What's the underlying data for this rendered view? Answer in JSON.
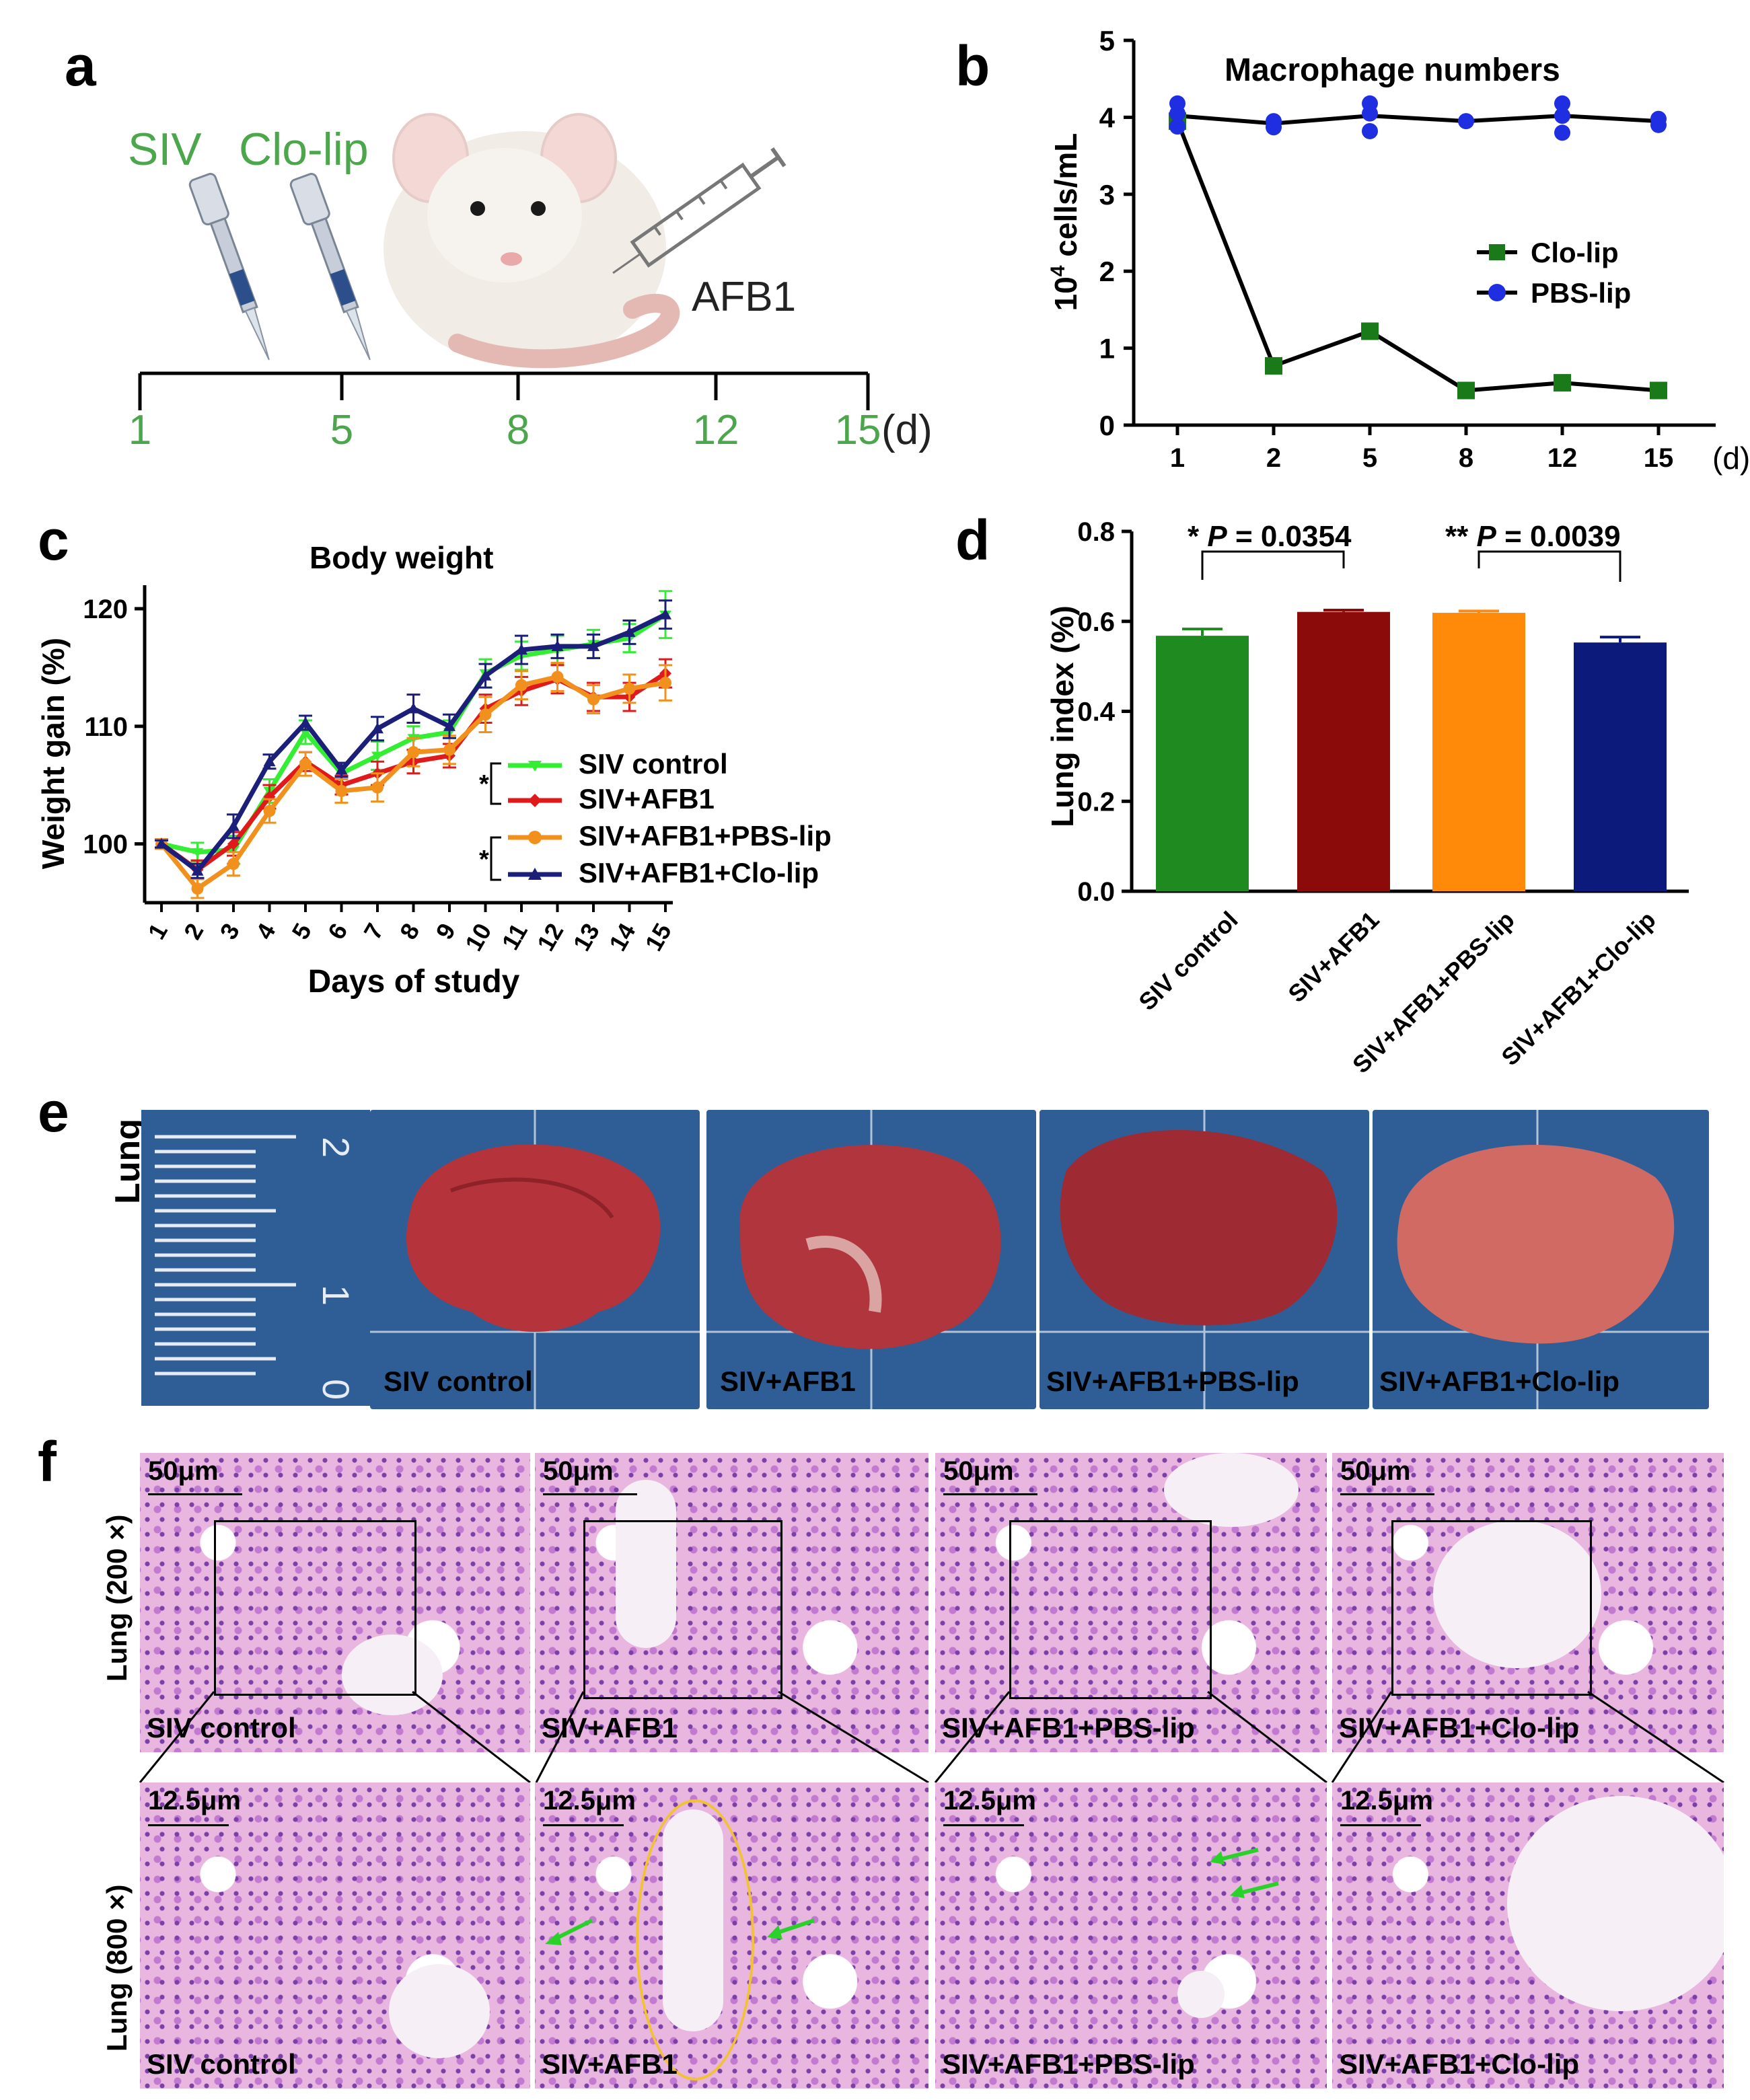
{
  "panels": {
    "a": {
      "label": "a",
      "injections": [
        "SIV",
        "Clo-lip"
      ],
      "drug": "AFB1",
      "timeline_ticks": [
        "1",
        "5",
        "8",
        "12",
        "15"
      ],
      "unit": "(d)"
    },
    "b": {
      "label": "b"
    },
    "c": {
      "label": "c"
    },
    "d": {
      "label": "d"
    },
    "e": {
      "label": "e",
      "row_label": "Lung",
      "ruler_marks": [
        "2",
        "1",
        "0"
      ],
      "samples": [
        "SIV control",
        "SIV+AFB1",
        "SIV+AFB1+PBS-lip",
        "SIV+AFB1+Clo-lip"
      ]
    },
    "f": {
      "label": "f",
      "row_labels": [
        "Lung (200 ×)",
        "Lung (800 ×)"
      ],
      "scalebars": [
        "50μm",
        "12.5μm"
      ],
      "samples": [
        "SIV control",
        "SIV+AFB1",
        "SIV+AFB1+PBS-lip",
        "SIV+AFB1+Clo-lip"
      ]
    }
  },
  "colors": {
    "green_text": "#4ca64c",
    "clo_lip": "#1a7a1a",
    "pbs_lip": "#1f2ee0",
    "siv_control": "#33ee33",
    "siv_afb1": "#e01a1a",
    "afb1_pbs": "#f2901e",
    "afb1_clo": "#1c1f7a",
    "bar_green": "#1f8a1f",
    "bar_maroon": "#8b0a0a",
    "bar_orange": "#ff8a0a",
    "bar_navy": "#0c1a7c"
  },
  "chart_data": [
    {
      "id": "b",
      "type": "line",
      "title": "Macrophage numbers",
      "xlabel": "",
      "ylabel": "10⁴ cells/mL",
      "ylabel_base": "10",
      "ylabel_exp": "4",
      "ylabel_rest": " cells/mL",
      "categories": [
        "1",
        "2",
        "5",
        "8",
        "12",
        "15"
      ],
      "x_unit": "(d)",
      "ylim": [
        0,
        5
      ],
      "yticks": [
        "0",
        "1",
        "2",
        "3",
        "4",
        "5"
      ],
      "series": [
        {
          "name": "Clo-lip",
          "values": [
            3.95,
            0.77,
            1.22,
            0.45,
            0.55,
            0.45
          ]
        },
        {
          "name": "PBS-lip",
          "values": [
            4.02,
            3.92,
            4.02,
            3.95,
            4.02,
            3.95
          ]
        }
      ],
      "pbs_points": [
        [
          1,
          4.18
        ],
        [
          1,
          4.05
        ],
        [
          1,
          3.88
        ],
        [
          2,
          3.95
        ],
        [
          2,
          3.87
        ],
        [
          5,
          4.18
        ],
        [
          5,
          4.05
        ],
        [
          5,
          3.82
        ],
        [
          8,
          3.95
        ],
        [
          12,
          4.18
        ],
        [
          12,
          4.02
        ],
        [
          12,
          3.8
        ],
        [
          15,
          3.98
        ],
        [
          15,
          3.9
        ]
      ]
    },
    {
      "id": "c",
      "type": "line",
      "title": "Body weight",
      "xlabel": "Days of study",
      "ylabel": "Weight gain (%)",
      "categories": [
        "1",
        "2",
        "3",
        "4",
        "5",
        "6",
        "7",
        "8",
        "9",
        "10",
        "11",
        "12",
        "13",
        "14",
        "15"
      ],
      "ylim": [
        95,
        122
      ],
      "yticks": [
        "100",
        "110",
        "120"
      ],
      "significance": [
        "*",
        "*"
      ],
      "series": [
        {
          "name": "SIV control",
          "values": [
            100,
            99.3,
            99.5,
            104.5,
            109.5,
            106.0,
            107.5,
            109.0,
            109.5,
            114.5,
            116.0,
            116.5,
            117.0,
            117.5,
            119.5
          ],
          "errors": [
            0.4,
            0.8,
            1.2,
            1.0,
            1.0,
            0.8,
            1.2,
            1.0,
            1.0,
            1.2,
            1.2,
            1.2,
            1.2,
            1.2,
            2.0
          ]
        },
        {
          "name": "SIV+AFB1",
          "values": [
            100,
            97.8,
            100.0,
            104.0,
            107.0,
            105.0,
            106.0,
            107.0,
            107.5,
            111.5,
            113.0,
            114.0,
            112.5,
            112.5,
            114.5
          ],
          "errors": [
            0.4,
            0.8,
            1.0,
            1.0,
            0.8,
            0.8,
            1.0,
            1.0,
            1.0,
            1.2,
            1.2,
            1.2,
            1.2,
            1.2,
            1.2
          ]
        },
        {
          "name": "SIV+AFB1+PBS-lip",
          "values": [
            100,
            96.2,
            98.3,
            102.8,
            106.8,
            104.5,
            104.8,
            107.8,
            108.0,
            111.0,
            113.5,
            114.2,
            112.3,
            113.2,
            113.7
          ],
          "errors": [
            0.4,
            0.8,
            1.0,
            1.0,
            1.0,
            1.0,
            1.2,
            1.2,
            1.2,
            1.5,
            1.2,
            1.2,
            1.2,
            1.2,
            1.5
          ]
        },
        {
          "name": "SIV+AFB1+Clo-lip",
          "values": [
            100,
            97.7,
            101.5,
            107.0,
            110.3,
            106.3,
            109.8,
            111.5,
            110.0,
            114.3,
            116.5,
            116.8,
            116.8,
            118.0,
            119.5
          ],
          "errors": [
            0.3,
            0.6,
            1.0,
            0.6,
            0.6,
            0.6,
            1.0,
            1.2,
            1.0,
            1.0,
            1.2,
            1.0,
            1.0,
            1.0,
            1.2
          ]
        }
      ]
    },
    {
      "id": "d",
      "type": "bar",
      "title": "",
      "ylabel": "Lung index (%)",
      "xlabel": "",
      "categories": [
        "SIV control",
        "SIV+AFB1",
        "SIV+AFB1+PBS-lip",
        "SIV+AFB1+Clo-lip"
      ],
      "values": [
        0.568,
        0.621,
        0.619,
        0.553
      ],
      "errors": [
        0.015,
        0.004,
        0.004,
        0.012
      ],
      "ylim": [
        0,
        0.8
      ],
      "yticks": [
        "0.0",
        "0.2",
        "0.4",
        "0.6",
        "0.8"
      ],
      "annotations": [
        {
          "stars": "*",
          "p_label": "P",
          "p_value": " = 0.0354",
          "between": [
            0,
            1
          ]
        },
        {
          "stars": "**",
          "p_label": "P",
          "p_value": " = 0.0039",
          "between": [
            2,
            3
          ]
        }
      ]
    }
  ]
}
